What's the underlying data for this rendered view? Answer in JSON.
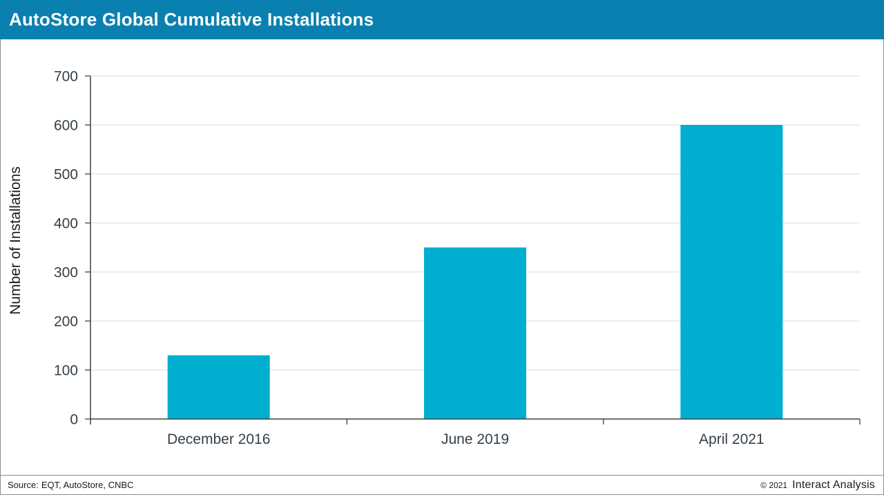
{
  "header": {
    "title": "AutoStore Global Cumulative Installations",
    "background_color": "#0a80b1",
    "text_color": "#ffffff"
  },
  "chart_data": {
    "type": "bar",
    "title": "AutoStore Global Cumulative Installations",
    "categories": [
      "December 2016",
      "June 2019",
      "April 2021"
    ],
    "values": [
      130,
      350,
      600
    ],
    "xlabel": "",
    "ylabel": "Number of Installations",
    "ylim": [
      0,
      700
    ],
    "yticks": [
      0,
      100,
      200,
      300,
      400,
      500,
      600,
      700
    ],
    "grid": true,
    "legend": "none",
    "bar_color": "#00aed0",
    "gridline_color": "#d9d9d9",
    "axis_color": "#404040",
    "tick_label_color": "#333f48",
    "axis_title_color": "#1a1a1a"
  },
  "footer": {
    "source_label": "Source:",
    "source_text": "EQT, AutoStore, CNBC",
    "copyright": "© 2021",
    "brand": "Interact Analysis"
  }
}
